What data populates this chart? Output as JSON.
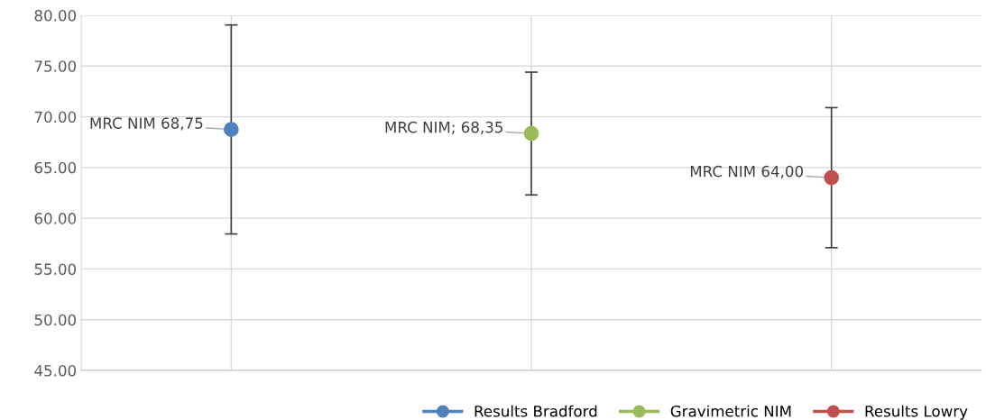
{
  "chart_data": {
    "type": "scatter",
    "categories": [
      null,
      null,
      null
    ],
    "series": [
      {
        "name": "Results Bradford",
        "color": "#4f81bd",
        "values": [
          68.75,
          null,
          null
        ],
        "errors": [
          10.3,
          null,
          null
        ],
        "value_labels": [
          "MRC NIM 68,75",
          null,
          null
        ]
      },
      {
        "name": "Gravimetric NIM",
        "color": "#9bbb59",
        "values": [
          null,
          68.35,
          null
        ],
        "errors": [
          null,
          6.05,
          null
        ],
        "value_labels": [
          null,
          "MRC NIM; 68,35",
          null
        ]
      },
      {
        "name": "Results Lowry",
        "color": "#c0504d",
        "values": [
          null,
          null,
          64.0
        ],
        "errors": [
          null,
          null,
          6.9
        ],
        "value_labels": [
          null,
          null,
          "MRC NIM 64,00"
        ]
      }
    ],
    "ylim": [
      45,
      80
    ],
    "yticks": [
      {
        "value": 45,
        "label": "45.00"
      },
      {
        "value": 50,
        "label": "50.00"
      },
      {
        "value": 55,
        "label": "55.00"
      },
      {
        "value": 60,
        "label": "60.00"
      },
      {
        "value": 65,
        "label": "65.00"
      },
      {
        "value": 70,
        "label": "70.00"
      },
      {
        "value": 75,
        "label": "75.00"
      },
      {
        "value": 80,
        "label": "80.00"
      }
    ],
    "grid": true,
    "legend": "bottom",
    "marker": "circle"
  }
}
